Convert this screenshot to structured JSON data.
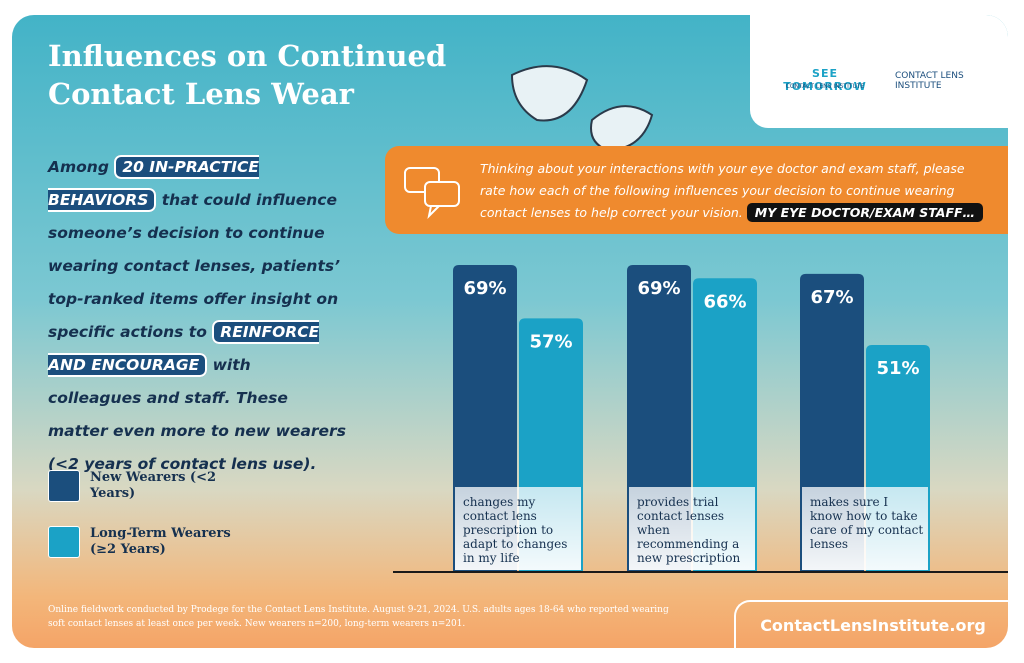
{
  "title": "Influences on Continued Contact Lens Wear",
  "intro": [
    "Among",
    "20 IN-PRACTICE BEHAVIORS",
    "that could influence someone’s decision to continue wearing contact lenses, patients’ top-ranked items offer insight on specific actions to",
    "REINFORCE AND ENCOURAGE",
    "with colleagues and staff. These matter even more to new wearers (<2 years of contact lens use)."
  ],
  "question": "Thinking about your interactions with your eye doctor and exam staff, please rate how each of the following influences your decision to continue wearing contact lenses to help correct your vision.",
  "question_highlight": "MY EYE DOCTOR/EXAM STAFF…",
  "logos": {
    "see_tomorrow": "SEE TOMORROW",
    "see_tomorrow_sub": "CONTACT LENS INSTITUTE",
    "cli": "CONTACT LENS INSTITUTE"
  },
  "footnote": "Online fieldwork conducted by Prodege for the Contact Lens Institute. August 9-21, 2024. U.S. adults ages 18-64 who reported wearing soft contact lenses at least once per week. New wearers n=200, long-term wearers n=201.",
  "url": "ContactLensInstitute.org",
  "chart_data": {
    "type": "bar",
    "categories": [
      "changes my contact lens prescription to adapt to changes in my life",
      "provides trial contact lenses when recommending a new prescription",
      "makes sure I know how to take care of my contact lenses"
    ],
    "series": [
      {
        "name": "New Wearers (<2 Years)",
        "color": "#1b4e7d",
        "values": [
          69,
          69,
          67
        ],
        "value_labels": [
          "69%",
          "69%",
          "67%"
        ]
      },
      {
        "name": "Long-Term Wearers (≥2 Years)",
        "color": "#1ba2c6",
        "values": [
          57,
          66,
          51
        ],
        "value_labels": [
          "57%",
          "66%",
          "51%"
        ]
      }
    ]
  }
}
